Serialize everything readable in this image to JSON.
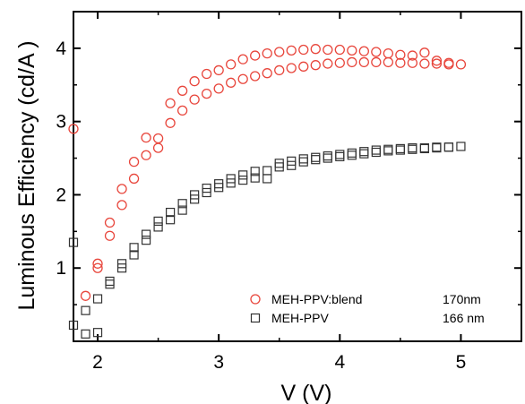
{
  "chart_data": {
    "type": "scatter",
    "xlabel": "V (V)",
    "ylabel": "Luminous Efficiency (cd/A )",
    "xlim": [
      1.8,
      5.5
    ],
    "ylim": [
      0,
      4.5
    ],
    "xticks": [
      2,
      3,
      4,
      5
    ],
    "yticks": [
      1,
      2,
      3,
      4
    ],
    "xtick_labels": [
      "2",
      "3",
      "4",
      "5"
    ],
    "ytick_labels": [
      "1",
      "2",
      "3",
      "4"
    ],
    "grid": false,
    "legend_position": "bottom-right",
    "series": [
      {
        "name": "MEH-PPV:blend",
        "note": "170nm",
        "marker": "open-circle",
        "color": "#e8463c",
        "x": [
          1.8,
          1.9,
          2.0,
          2.0,
          2.1,
          2.1,
          2.2,
          2.2,
          2.3,
          2.3,
          2.4,
          2.4,
          2.5,
          2.5,
          2.6,
          2.6,
          2.7,
          2.7,
          2.8,
          2.8,
          2.9,
          2.9,
          3.0,
          3.0,
          3.1,
          3.1,
          3.2,
          3.2,
          3.3,
          3.3,
          3.4,
          3.4,
          3.5,
          3.5,
          3.6,
          3.6,
          3.7,
          3.7,
          3.8,
          3.8,
          3.9,
          3.9,
          4.0,
          4.0,
          4.1,
          4.1,
          4.2,
          4.2,
          4.3,
          4.3,
          4.4,
          4.4,
          4.5,
          4.5,
          4.6,
          4.6,
          4.7,
          4.7,
          4.8,
          4.8,
          4.9,
          4.9,
          5.0
        ],
        "y": [
          2.9,
          0.62,
          1.0,
          1.06,
          1.44,
          1.62,
          1.86,
          2.08,
          2.22,
          2.45,
          2.54,
          2.78,
          2.64,
          2.77,
          2.98,
          3.25,
          3.15,
          3.42,
          3.3,
          3.55,
          3.38,
          3.65,
          3.45,
          3.7,
          3.53,
          3.78,
          3.58,
          3.85,
          3.62,
          3.9,
          3.66,
          3.93,
          3.7,
          3.95,
          3.73,
          3.97,
          3.75,
          3.98,
          3.77,
          3.99,
          3.79,
          3.98,
          3.8,
          3.98,
          3.81,
          3.97,
          3.81,
          3.96,
          3.81,
          3.95,
          3.81,
          3.93,
          3.8,
          3.91,
          3.8,
          3.9,
          3.79,
          3.94,
          3.79,
          3.83,
          3.78,
          3.8,
          3.78
        ]
      },
      {
        "name": "MEH-PPV",
        "note": "166 nm",
        "marker": "open-square",
        "color": "#333333",
        "x": [
          1.8,
          1.8,
          1.9,
          1.9,
          2.0,
          2.0,
          2.1,
          2.1,
          2.2,
          2.2,
          2.3,
          2.3,
          2.4,
          2.4,
          2.5,
          2.5,
          2.6,
          2.6,
          2.7,
          2.7,
          2.8,
          2.8,
          2.9,
          2.9,
          3.0,
          3.0,
          3.1,
          3.1,
          3.2,
          3.2,
          3.3,
          3.3,
          3.4,
          3.4,
          3.5,
          3.5,
          3.6,
          3.6,
          3.7,
          3.7,
          3.8,
          3.8,
          3.9,
          3.9,
          4.0,
          4.0,
          4.1,
          4.1,
          4.2,
          4.2,
          4.3,
          4.3,
          4.4,
          4.4,
          4.5,
          4.5,
          4.6,
          4.6,
          4.7,
          4.7,
          4.8,
          4.8,
          4.9,
          4.9,
          5.0
        ],
        "y": [
          1.35,
          0.22,
          0.1,
          0.42,
          0.12,
          0.58,
          0.78,
          0.82,
          1.0,
          1.06,
          1.18,
          1.28,
          1.38,
          1.46,
          1.56,
          1.64,
          1.66,
          1.76,
          1.79,
          1.88,
          1.94,
          2.0,
          2.03,
          2.09,
          2.1,
          2.15,
          2.16,
          2.22,
          2.2,
          2.27,
          2.23,
          2.32,
          2.22,
          2.33,
          2.38,
          2.43,
          2.4,
          2.46,
          2.45,
          2.49,
          2.48,
          2.51,
          2.5,
          2.53,
          2.52,
          2.55,
          2.54,
          2.57,
          2.56,
          2.59,
          2.58,
          2.61,
          2.6,
          2.62,
          2.61,
          2.63,
          2.62,
          2.64,
          2.63,
          2.64,
          2.64,
          2.65,
          2.65,
          2.65,
          2.66
        ]
      }
    ]
  }
}
